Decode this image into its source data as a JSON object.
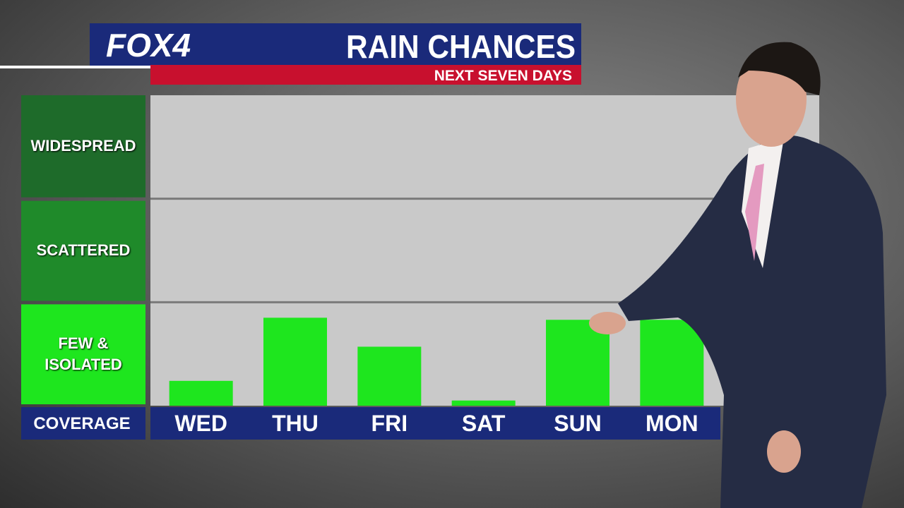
{
  "brand": "FOX4",
  "chart_data": {
    "type": "bar",
    "title": "RAIN CHANCES",
    "subtitle": "NEXT SEVEN DAYS",
    "y_label": "COVERAGE",
    "categories": [
      "WED",
      "THU",
      "FRI",
      "SAT",
      "SUN",
      "MON"
    ],
    "values": [
      0.24,
      0.85,
      0.57,
      0.05,
      0.83,
      0.83
    ],
    "color": "#1ee61e",
    "ylim": [
      0,
      3
    ],
    "yticks": [
      {
        "value": 0.5,
        "label": "FEW & ISOLATED"
      },
      {
        "value": 1.5,
        "label": "SCATTERED"
      },
      {
        "value": 2.5,
        "label": "WIDESPREAD"
      }
    ],
    "grid": true
  }
}
